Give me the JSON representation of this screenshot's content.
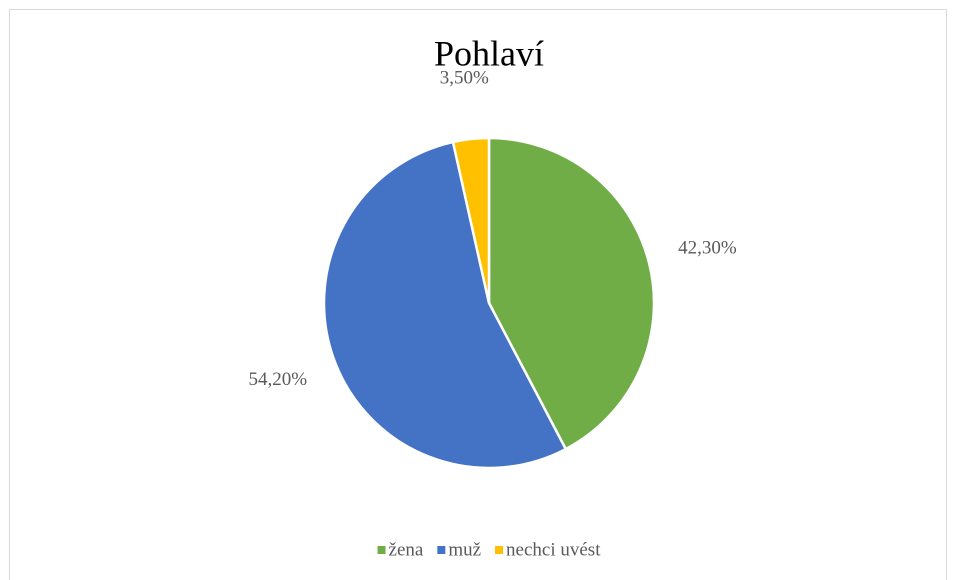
{
  "chart_data": {
    "type": "pie",
    "title": "Pohlaví",
    "categories": [
      "žena",
      "muž",
      "nechci uvést"
    ],
    "values": [
      42.3,
      54.2,
      3.5
    ],
    "value_labels": [
      "42,30%",
      "54,20%",
      "3,50%"
    ],
    "colors": [
      "#70ad47",
      "#4472c4",
      "#ffc000"
    ],
    "legend": "bottom"
  }
}
